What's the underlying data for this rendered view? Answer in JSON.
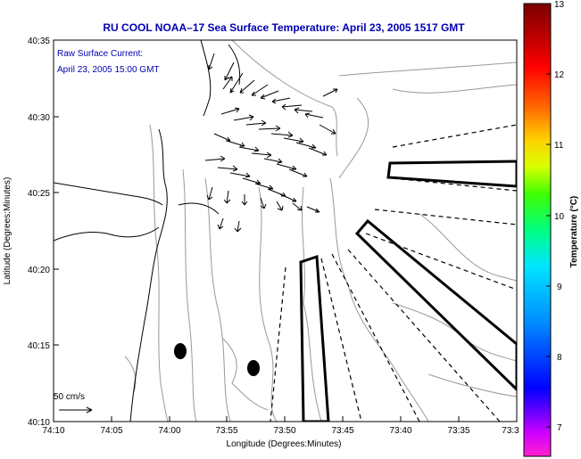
{
  "title": "RU COOL  NOAA–17  Sea Surface Temperature:  April 23, 2005 1517 GMT",
  "annotation": {
    "line1": "Raw Surface Current:",
    "line2": "April 23, 2005 15:00 GMT"
  },
  "scale_label": "50 cm/s",
  "chart_data": {
    "type": "map",
    "xlabel": "Longitude (Degrees:Minutes)",
    "ylabel": "Latitude (Degrees:Minutes)",
    "x_ticks": [
      "74:10",
      "74:05",
      "74:00",
      "73:55",
      "73:50",
      "73:45",
      "73:40",
      "73:35",
      "73:3"
    ],
    "y_ticks": [
      "40:35",
      "40:30",
      "40:25",
      "40:20",
      "40:15",
      "40:10"
    ],
    "colorbar": {
      "label": "Temperature (°C)",
      "ticks": [
        "13",
        "12",
        "11",
        "10",
        "9",
        "8",
        "7"
      ],
      "range": [
        6.6,
        13
      ]
    }
  },
  "colors": {
    "title": "#0000b4",
    "colorbar_stops": [
      "#ff22cc",
      "#7a00ff",
      "#0000ff",
      "#0090ff",
      "#00e5ff",
      "#00ff80",
      "#40ff00",
      "#d9ff00",
      "#ffd000",
      "#ff6a00",
      "#ff0000",
      "#b00000",
      "#7a0000"
    ]
  }
}
